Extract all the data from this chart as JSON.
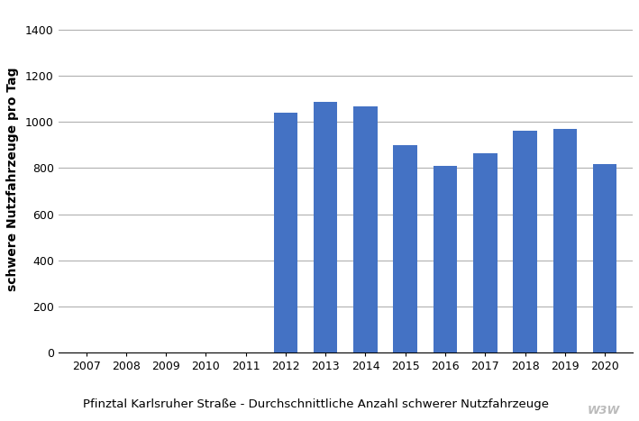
{
  "years": [
    2007,
    2008,
    2009,
    2010,
    2011,
    2012,
    2013,
    2014,
    2015,
    2016,
    2017,
    2018,
    2019,
    2020
  ],
  "values": [
    0,
    0,
    0,
    0,
    0,
    1038,
    1088,
    1068,
    898,
    808,
    863,
    960,
    970,
    818
  ],
  "bar_color": "#4472c4",
  "ylabel": "schwere Nutzfahrzeuge pro Tag",
  "caption": "Pfinztal Karlsruher Straße - Durchschnittliche Anzahl schwerer Nutzfahrzeuge",
  "ylim": [
    0,
    1500
  ],
  "yticks": [
    0,
    200,
    400,
    600,
    800,
    1000,
    1200,
    1400
  ],
  "background_color": "#ffffff",
  "grid_color": "#b0b0b0",
  "watermark": "W3W",
  "bar_width": 0.6
}
